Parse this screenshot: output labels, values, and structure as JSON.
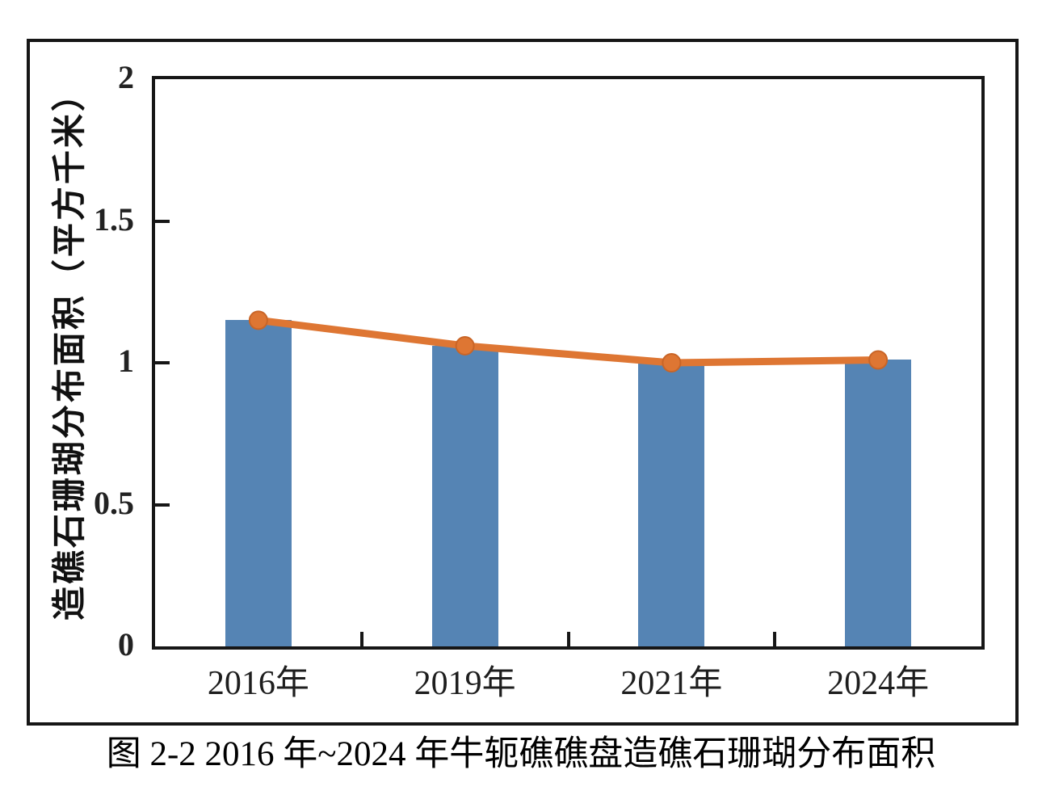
{
  "figure": {
    "caption": "图 2-2 2016 年~2024 年牛轭礁礁盘造礁石珊瑚分布面积"
  },
  "chart_data": {
    "type": "bar",
    "subtype": "bar-with-line-overlay",
    "title": "",
    "xlabel": "",
    "ylabel": "造礁石珊瑚分布面积（平方千米）",
    "categories": [
      "2016年",
      "2019年",
      "2021年",
      "2024年"
    ],
    "series": [
      {
        "name": "bar",
        "type": "bar",
        "color": "#5584b4",
        "values": [
          1.15,
          1.06,
          1.0,
          1.01
        ]
      },
      {
        "name": "line",
        "type": "line",
        "color": "#de7633",
        "marker": "circle",
        "values": [
          1.15,
          1.06,
          1.0,
          1.01
        ]
      }
    ],
    "ylim": [
      0,
      2
    ],
    "yticks": [
      "0",
      "0.5",
      "1",
      "1.5",
      "2"
    ],
    "grid": false,
    "legend": "none"
  },
  "colors": {
    "bar": "#5584b4",
    "line": "#de7633",
    "marker_edge": "#c96527",
    "axis": "#161616",
    "background": "#ffffff"
  }
}
